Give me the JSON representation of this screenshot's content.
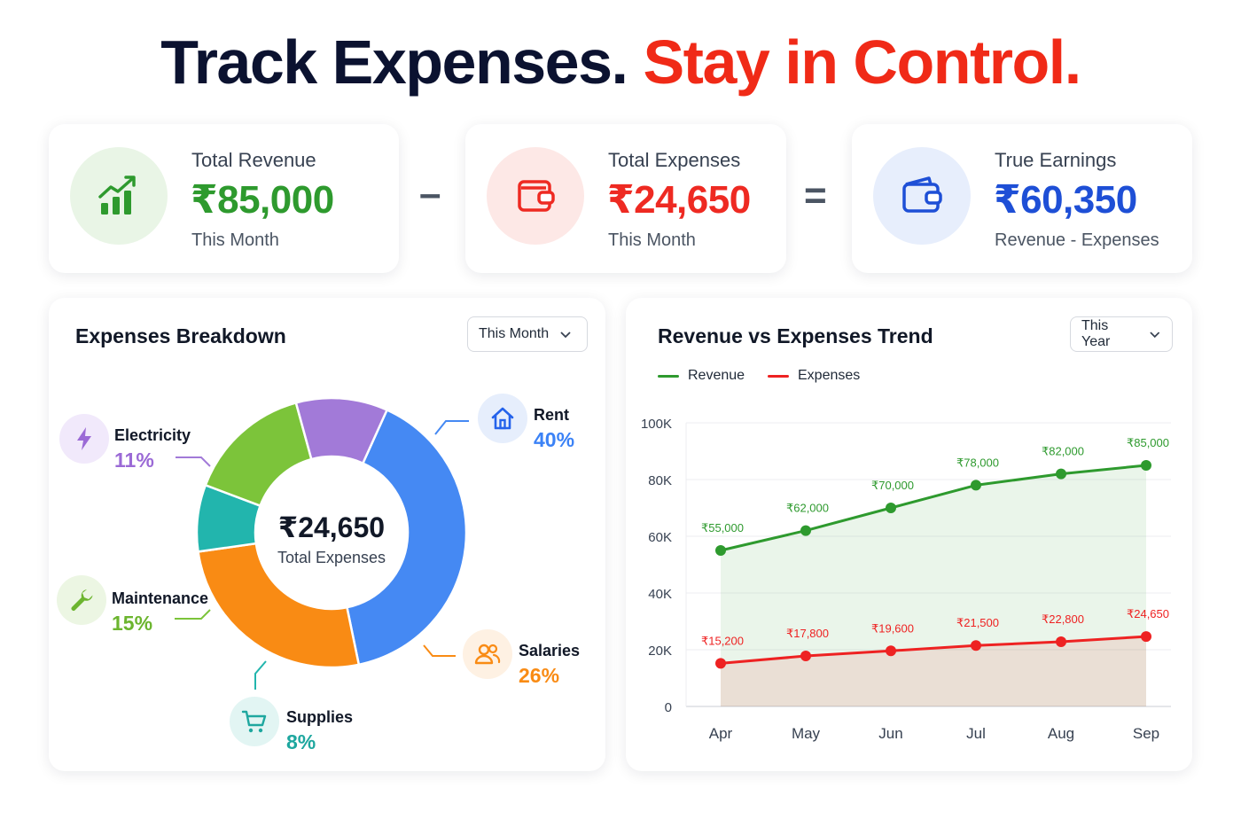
{
  "headline": {
    "part1": "Track Expenses.",
    "part2": "Stay in Control."
  },
  "kpis": [
    {
      "label": "Total Revenue",
      "value": "₹85,000",
      "sub": "This Month",
      "icon": "chart-growth-icon",
      "color": "#2e9a2e"
    },
    {
      "label": "Total Expenses",
      "value": "₹24,650",
      "sub": "This Month",
      "icon": "wallet-icon",
      "color": "#ee2a22"
    },
    {
      "label": "True Earnings",
      "value": "₹60,350",
      "sub": "Revenue - Expenses",
      "icon": "wallet-icon",
      "color": "#1e4fd6"
    }
  ],
  "operators": {
    "minus": "–",
    "equals": "="
  },
  "breakdown": {
    "title": "Expenses Breakdown",
    "filter": "This Month",
    "center_value": "₹24,650",
    "center_label": "Total Expenses",
    "segments": [
      {
        "name": "Rent",
        "pct": "40%",
        "value": 40,
        "color": "#4589f3",
        "icon": "house-icon"
      },
      {
        "name": "Salaries",
        "pct": "26%",
        "value": 26,
        "color": "#f98b14",
        "icon": "users-icon"
      },
      {
        "name": "Supplies",
        "pct": "8%",
        "value": 8,
        "color": "#22b5ad",
        "icon": "cart-icon"
      },
      {
        "name": "Maintenance",
        "pct": "15%",
        "value": 15,
        "color": "#7cc43a",
        "icon": "wrench-icon"
      },
      {
        "name": "Electricity",
        "pct": "11%",
        "value": 11,
        "color": "#a27ad8",
        "icon": "lightning-icon"
      }
    ]
  },
  "trend": {
    "title": "Revenue vs Expenses Trend",
    "filter": "This Year",
    "legend": [
      "Revenue",
      "Expenses"
    ]
  },
  "chart_data": {
    "type": "line",
    "categories": [
      "Apr",
      "May",
      "Jun",
      "Jul",
      "Aug",
      "Sep"
    ],
    "ylim": [
      0,
      100000
    ],
    "yticks": [
      "0",
      "20K",
      "40K",
      "60K",
      "80K",
      "100K"
    ],
    "yticks_values": [
      0,
      20000,
      40000,
      60000,
      80000,
      100000
    ],
    "series": [
      {
        "name": "Revenue",
        "color": "#2e9a2e",
        "values": [
          55000,
          62000,
          70000,
          78000,
          82000,
          85000
        ],
        "labels": [
          "₹55,000",
          "₹62,000",
          "₹70,000",
          "₹78,000",
          "₹82,000",
          "₹85,000"
        ]
      },
      {
        "name": "Expenses",
        "color": "#ee2222",
        "values": [
          15200,
          17800,
          19600,
          21500,
          22800,
          24650
        ],
        "labels": [
          "₹15,200",
          "₹17,800",
          "₹19,600",
          "₹21,500",
          "₹22,800",
          "₹24,650"
        ]
      }
    ]
  }
}
